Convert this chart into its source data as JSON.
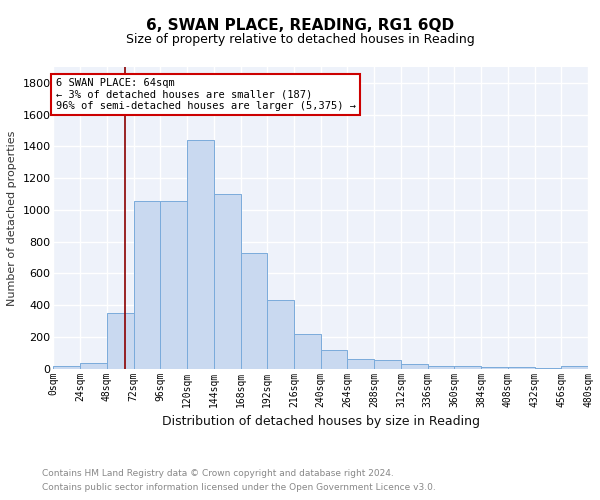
{
  "title": "6, SWAN PLACE, READING, RG1 6QD",
  "subtitle": "Size of property relative to detached houses in Reading",
  "xlabel": "Distribution of detached houses by size in Reading",
  "ylabel": "Number of detached properties",
  "bar_color": "#c9d9f0",
  "bar_edge_color": "#7aabdb",
  "bg_color": "#eef2fa",
  "grid_color": "#ffffff",
  "bin_edges": [
    0,
    24,
    48,
    72,
    96,
    120,
    144,
    168,
    192,
    216,
    240,
    264,
    288,
    312,
    336,
    360,
    384,
    408,
    432,
    456,
    480
  ],
  "bar_heights": [
    15,
    35,
    350,
    1055,
    1055,
    1440,
    1100,
    730,
    430,
    220,
    115,
    60,
    55,
    30,
    20,
    15,
    10,
    8,
    5,
    15
  ],
  "annotation_text": "6 SWAN PLACE: 64sqm\n← 3% of detached houses are smaller (187)\n96% of semi-detached houses are larger (5,375) →",
  "annotation_box_color": "#ffffff",
  "annotation_edge_color": "#cc0000",
  "red_line_x": 64,
  "footer_line1": "Contains HM Land Registry data © Crown copyright and database right 2024.",
  "footer_line2": "Contains public sector information licensed under the Open Government Licence v3.0.",
  "ylim": [
    0,
    1900
  ],
  "xlim": [
    0,
    480
  ],
  "tick_labels": [
    "0sqm",
    "24sqm",
    "48sqm",
    "72sqm",
    "96sqm",
    "120sqm",
    "144sqm",
    "168sqm",
    "192sqm",
    "216sqm",
    "240sqm",
    "264sqm",
    "288sqm",
    "312sqm",
    "336sqm",
    "360sqm",
    "384sqm",
    "408sqm",
    "432sqm",
    "456sqm",
    "480sqm"
  ],
  "title_fontsize": 11,
  "subtitle_fontsize": 9,
  "xlabel_fontsize": 9,
  "ylabel_fontsize": 8,
  "tick_fontsize": 7,
  "annotation_fontsize": 7.5,
  "footer_fontsize": 6.5
}
